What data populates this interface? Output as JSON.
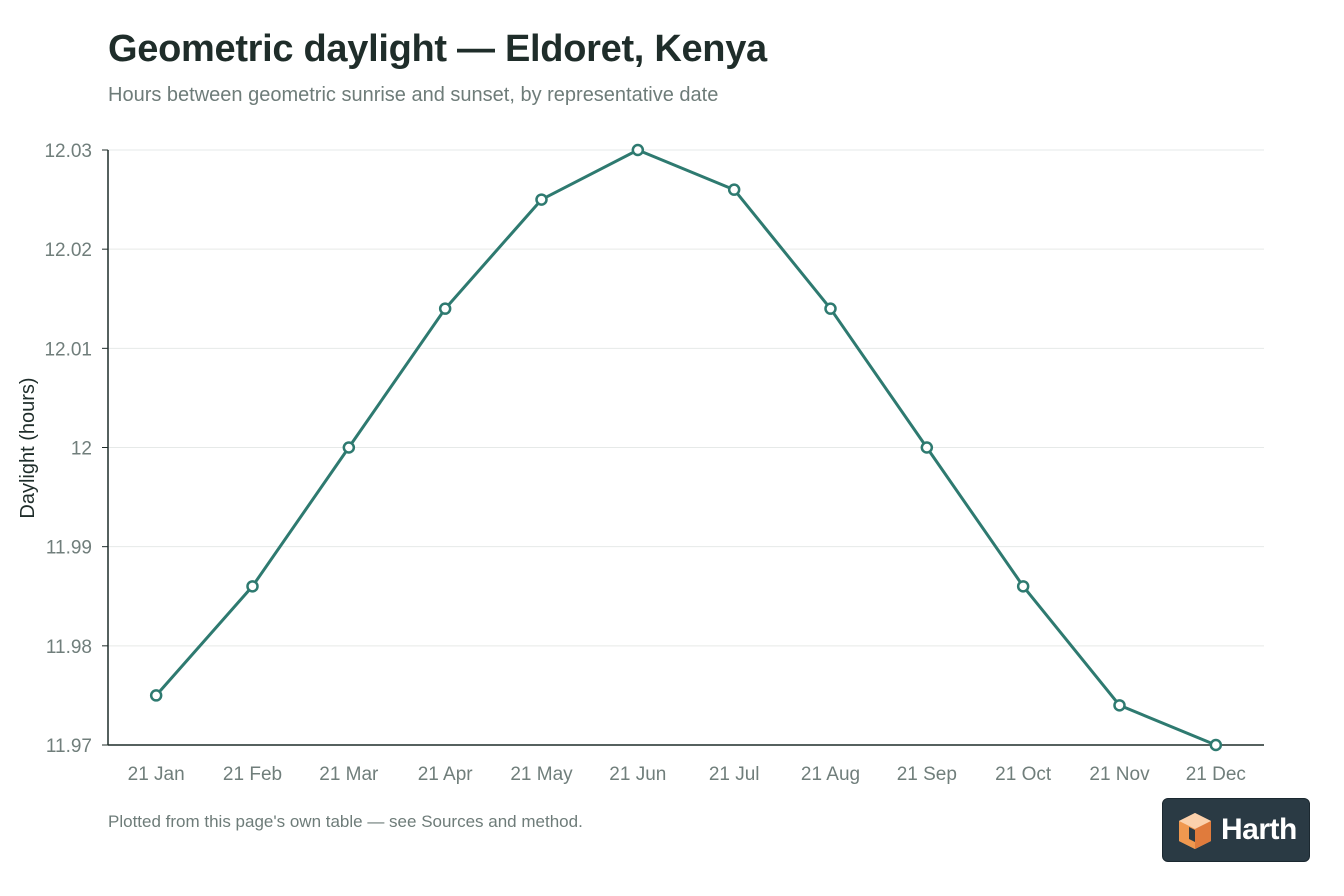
{
  "chart_data": {
    "type": "line",
    "title": "Geometric daylight — Eldoret, Kenya",
    "subtitle": "Hours between geometric sunrise and sunset, by representative date",
    "xlabel": "",
    "ylabel": "Daylight (hours)",
    "categories": [
      "21 Jan",
      "21 Feb",
      "21 Mar",
      "21 Apr",
      "21 May",
      "21 Jun",
      "21 Jul",
      "21 Aug",
      "21 Sep",
      "21 Oct",
      "21 Nov",
      "21 Dec"
    ],
    "series": [
      {
        "values": [
          11.975,
          11.986,
          12.0,
          12.014,
          12.025,
          12.03,
          12.026,
          12.014,
          12.0,
          11.986,
          11.974,
          11.97
        ]
      }
    ],
    "ylim": [
      11.97,
      12.03
    ],
    "yticks": [
      11.97,
      11.98,
      11.99,
      12,
      12.01,
      12.02,
      12.03
    ],
    "grid": true,
    "legend": "none",
    "colors": {
      "line": "#2e7a70",
      "grid": "#e6e9e8",
      "axis": "#1f2d2a"
    },
    "footnote": "Plotted from this page's own table — see Sources and method."
  },
  "brand": {
    "name": "Harth",
    "icon": "cube-logo-icon",
    "colors": {
      "background": "#2a3a44",
      "cube_light": "#f6b27a",
      "cube_dark": "#e07b3c"
    }
  }
}
